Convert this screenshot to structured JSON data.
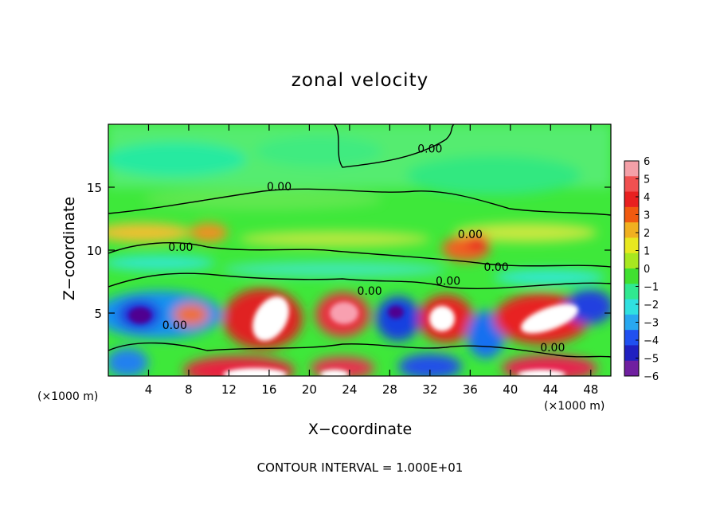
{
  "chart_data": {
    "type": "heatmap",
    "title": "zonal velocity",
    "xlabel": "X−coordinate",
    "ylabel": "Z−coordinate",
    "x_unit_left": "(×1000 m)",
    "x_unit_right": "(×1000 m)",
    "footer": "CONTOUR INTERVAL = 1.000E+01",
    "xlim": [
      0,
      50
    ],
    "ylim": [
      0,
      20
    ],
    "x_ticks": [
      4,
      8,
      12,
      16,
      20,
      24,
      28,
      32,
      36,
      40,
      44,
      48
    ],
    "y_ticks": [
      5,
      10,
      15
    ],
    "colorbar": {
      "ticks": [
        "6",
        "5",
        "4",
        "3",
        "2",
        "1",
        "0",
        "−1",
        "−2",
        "−3",
        "−4",
        "−5",
        "−6"
      ],
      "range": [
        -6,
        6
      ]
    },
    "contour_label": "0.00",
    "contour_labels": [
      {
        "x": 17.0,
        "y": 15.0,
        "text": "0.00"
      },
      {
        "x": 32.0,
        "y": 18.0,
        "text": "0.00"
      },
      {
        "x": 7.2,
        "y": 10.2,
        "text": "0.00"
      },
      {
        "x": 36.0,
        "y": 11.2,
        "text": "0.00"
      },
      {
        "x": 38.6,
        "y": 8.6,
        "text": "0.00"
      },
      {
        "x": 33.8,
        "y": 7.5,
        "text": "0.00"
      },
      {
        "x": 26.0,
        "y": 6.7,
        "text": "0.00"
      },
      {
        "x": 6.6,
        "y": 4.0,
        "text": "0.00"
      },
      {
        "x": 44.2,
        "y": 2.2,
        "text": "0.00"
      }
    ]
  }
}
